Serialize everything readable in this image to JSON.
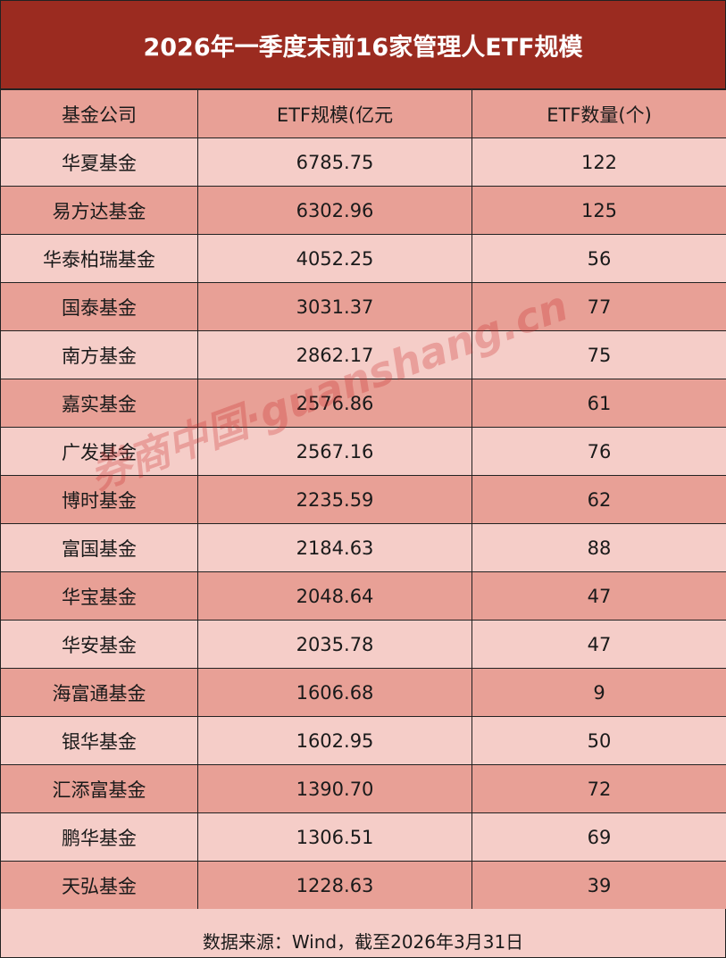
{
  "title": "2026年一季度末前16家管理人ETF规模",
  "footer": "数据来源：Wind，截至2026年3月31日",
  "watermark": "券商中国·guanshang.cn",
  "colors": {
    "title_bg": "#9b2b20",
    "row_dark": "#e8a096",
    "row_light": "#f5cdc8"
  },
  "chart_data": {
    "type": "table",
    "title": "2026年一季度末前16家管理人ETF规模",
    "columns": [
      "基金公司",
      "ETF规模(亿元",
      "ETF数量(个)"
    ],
    "rows": [
      [
        "华夏基金",
        "6785.75",
        "122"
      ],
      [
        "易方达基金",
        "6302.96",
        "125"
      ],
      [
        "华泰柏瑞基金",
        "4052.25",
        "56"
      ],
      [
        "国泰基金",
        "3031.37",
        "77"
      ],
      [
        "南方基金",
        "2862.17",
        "75"
      ],
      [
        "嘉实基金",
        "2576.86",
        "61"
      ],
      [
        "广发基金",
        "2567.16",
        "76"
      ],
      [
        "博时基金",
        "2235.59",
        "62"
      ],
      [
        "富国基金",
        "2184.63",
        "88"
      ],
      [
        "华宝基金",
        "2048.64",
        "47"
      ],
      [
        "华安基金",
        "2035.78",
        "47"
      ],
      [
        "海富通基金",
        "1606.68",
        "9"
      ],
      [
        "银华基金",
        "1602.95",
        "50"
      ],
      [
        "汇添富基金",
        "1390.70",
        "72"
      ],
      [
        "鹏华基金",
        "1306.51",
        "69"
      ],
      [
        "天弘基金",
        "1228.63",
        "39"
      ]
    ]
  }
}
